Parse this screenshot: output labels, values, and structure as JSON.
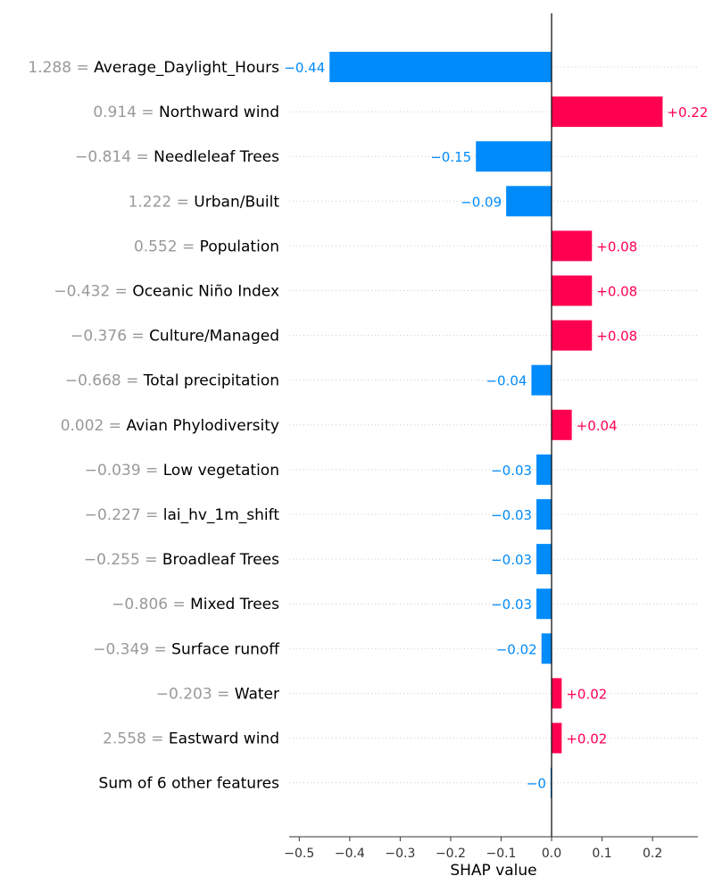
{
  "chart_data": {
    "type": "bar",
    "orientation": "horizontal",
    "xlabel": "SHAP value",
    "xlim": [
      -0.52,
      0.29
    ],
    "xticks": [
      -0.5,
      -0.4,
      -0.3,
      -0.2,
      -0.1,
      0.0,
      0.1,
      0.2
    ],
    "xtick_labels": [
      "−0.5",
      "−0.4",
      "−0.3",
      "−0.2",
      "−0.1",
      "0.0",
      "0.1",
      "0.2"
    ],
    "grid": "dotted row guides",
    "colors": {
      "positive": "#ff0051",
      "negative": "#008bfb",
      "feature_value": "#999999",
      "feature_name": "#000000"
    },
    "rows": [
      {
        "value_text": "1.288 =",
        "name": "Average_Daylight_Hours",
        "shap": -0.44,
        "label": "−0.44"
      },
      {
        "value_text": "0.914 =",
        "name": "Northward wind",
        "shap": 0.22,
        "label": "+0.22"
      },
      {
        "value_text": "−0.814 =",
        "name": "Needleleaf Trees",
        "shap": -0.15,
        "label": "−0.15"
      },
      {
        "value_text": "1.222 =",
        "name": "Urban/Built",
        "shap": -0.09,
        "label": "−0.09"
      },
      {
        "value_text": "0.552 =",
        "name": "Population",
        "shap": 0.08,
        "label": "+0.08"
      },
      {
        "value_text": "−0.432 =",
        "name": "Oceanic Niño Index",
        "shap": 0.08,
        "label": "+0.08"
      },
      {
        "value_text": "−0.376 =",
        "name": "Culture/Managed",
        "shap": 0.08,
        "label": "+0.08"
      },
      {
        "value_text": "−0.668 =",
        "name": "Total precipitation",
        "shap": -0.04,
        "label": "−0.04"
      },
      {
        "value_text": "0.002 =",
        "name": "Avian Phylodiversity",
        "shap": 0.04,
        "label": "+0.04"
      },
      {
        "value_text": "−0.039 =",
        "name": "Low vegetation",
        "shap": -0.03,
        "label": "−0.03"
      },
      {
        "value_text": "−0.227 =",
        "name": "lai_hv_1m_shift",
        "shap": -0.03,
        "label": "−0.03"
      },
      {
        "value_text": "−0.255 =",
        "name": "Broadleaf Trees",
        "shap": -0.03,
        "label": "−0.03"
      },
      {
        "value_text": "−0.806 =",
        "name": "Mixed Trees",
        "shap": -0.03,
        "label": "−0.03"
      },
      {
        "value_text": "−0.349 =",
        "name": "Surface runoff",
        "shap": -0.02,
        "label": "−0.02"
      },
      {
        "value_text": "−0.203 =",
        "name": "Water",
        "shap": 0.02,
        "label": "+0.02"
      },
      {
        "value_text": "2.558 =",
        "name": "Eastward wind",
        "shap": 0.02,
        "label": "+0.02"
      },
      {
        "value_text": "",
        "name": "Sum of 6 other features",
        "shap": -0.002,
        "label": "−0"
      }
    ]
  }
}
